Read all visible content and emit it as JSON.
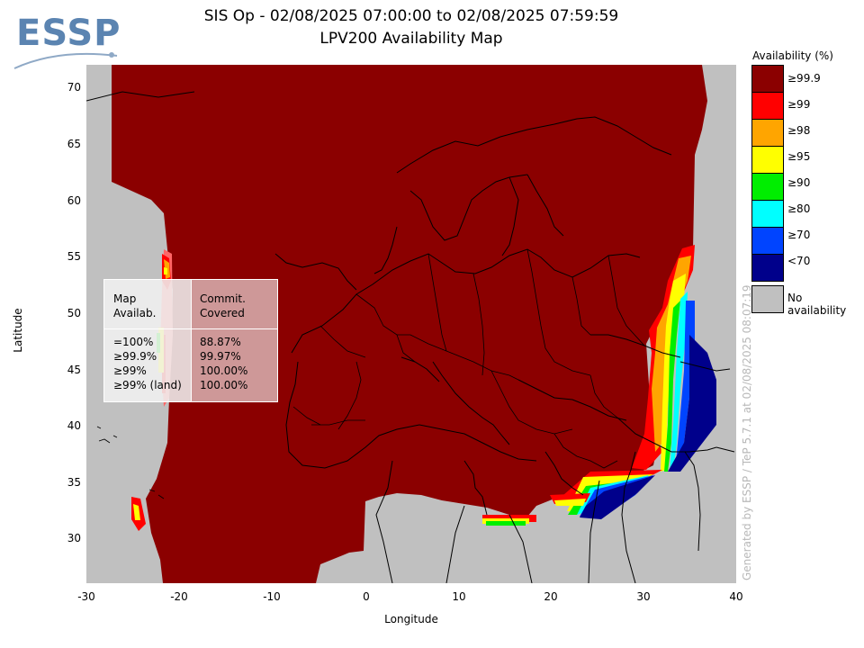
{
  "logo": {
    "text": "ESSP"
  },
  "title": {
    "line1": "SIS Op - 02/08/2025 07:00:00 to 02/08/2025 07:59:59",
    "line2": "LPV200 Availability Map"
  },
  "axes": {
    "xlabel": "Longitude",
    "ylabel": "Latitude",
    "xticks": [
      "-30",
      "-20",
      "-10",
      "0",
      "10",
      "20",
      "30",
      "40"
    ],
    "yticks": [
      "70",
      "65",
      "60",
      "55",
      "50",
      "45",
      "40",
      "35",
      "30"
    ],
    "xlim": [
      -30,
      40
    ],
    "ylim": [
      26,
      72
    ]
  },
  "legend": {
    "title": "Availability (%)",
    "entries": [
      {
        "label": "≥99.9",
        "color": "#8b0000"
      },
      {
        "label": "≥99",
        "color": "#ff0000"
      },
      {
        "label": "≥98",
        "color": "#ffa500"
      },
      {
        "label": "≥95",
        "color": "#ffff00"
      },
      {
        "label": "≥90",
        "color": "#00ee00"
      },
      {
        "label": "≥80",
        "color": "#00ffff"
      },
      {
        "label": "≥70",
        "color": "#0044ff"
      },
      {
        "label": "<70",
        "color": "#00008b"
      }
    ],
    "no_availability": {
      "label": "No availability",
      "color": "#c0c0c0"
    }
  },
  "stats": {
    "header_left": "Map\nAvailab.",
    "header_right": "Commit.\nCovered",
    "rows_left": "=100%\n≥99.9%\n≥99%\n≥99% (land)",
    "rows_right": "88.87%\n99.97%\n100.00%\n100.00%"
  },
  "credit": "Generated by ESSP / TeP 5.7.1 at 02/08/2025 08:07:19"
}
